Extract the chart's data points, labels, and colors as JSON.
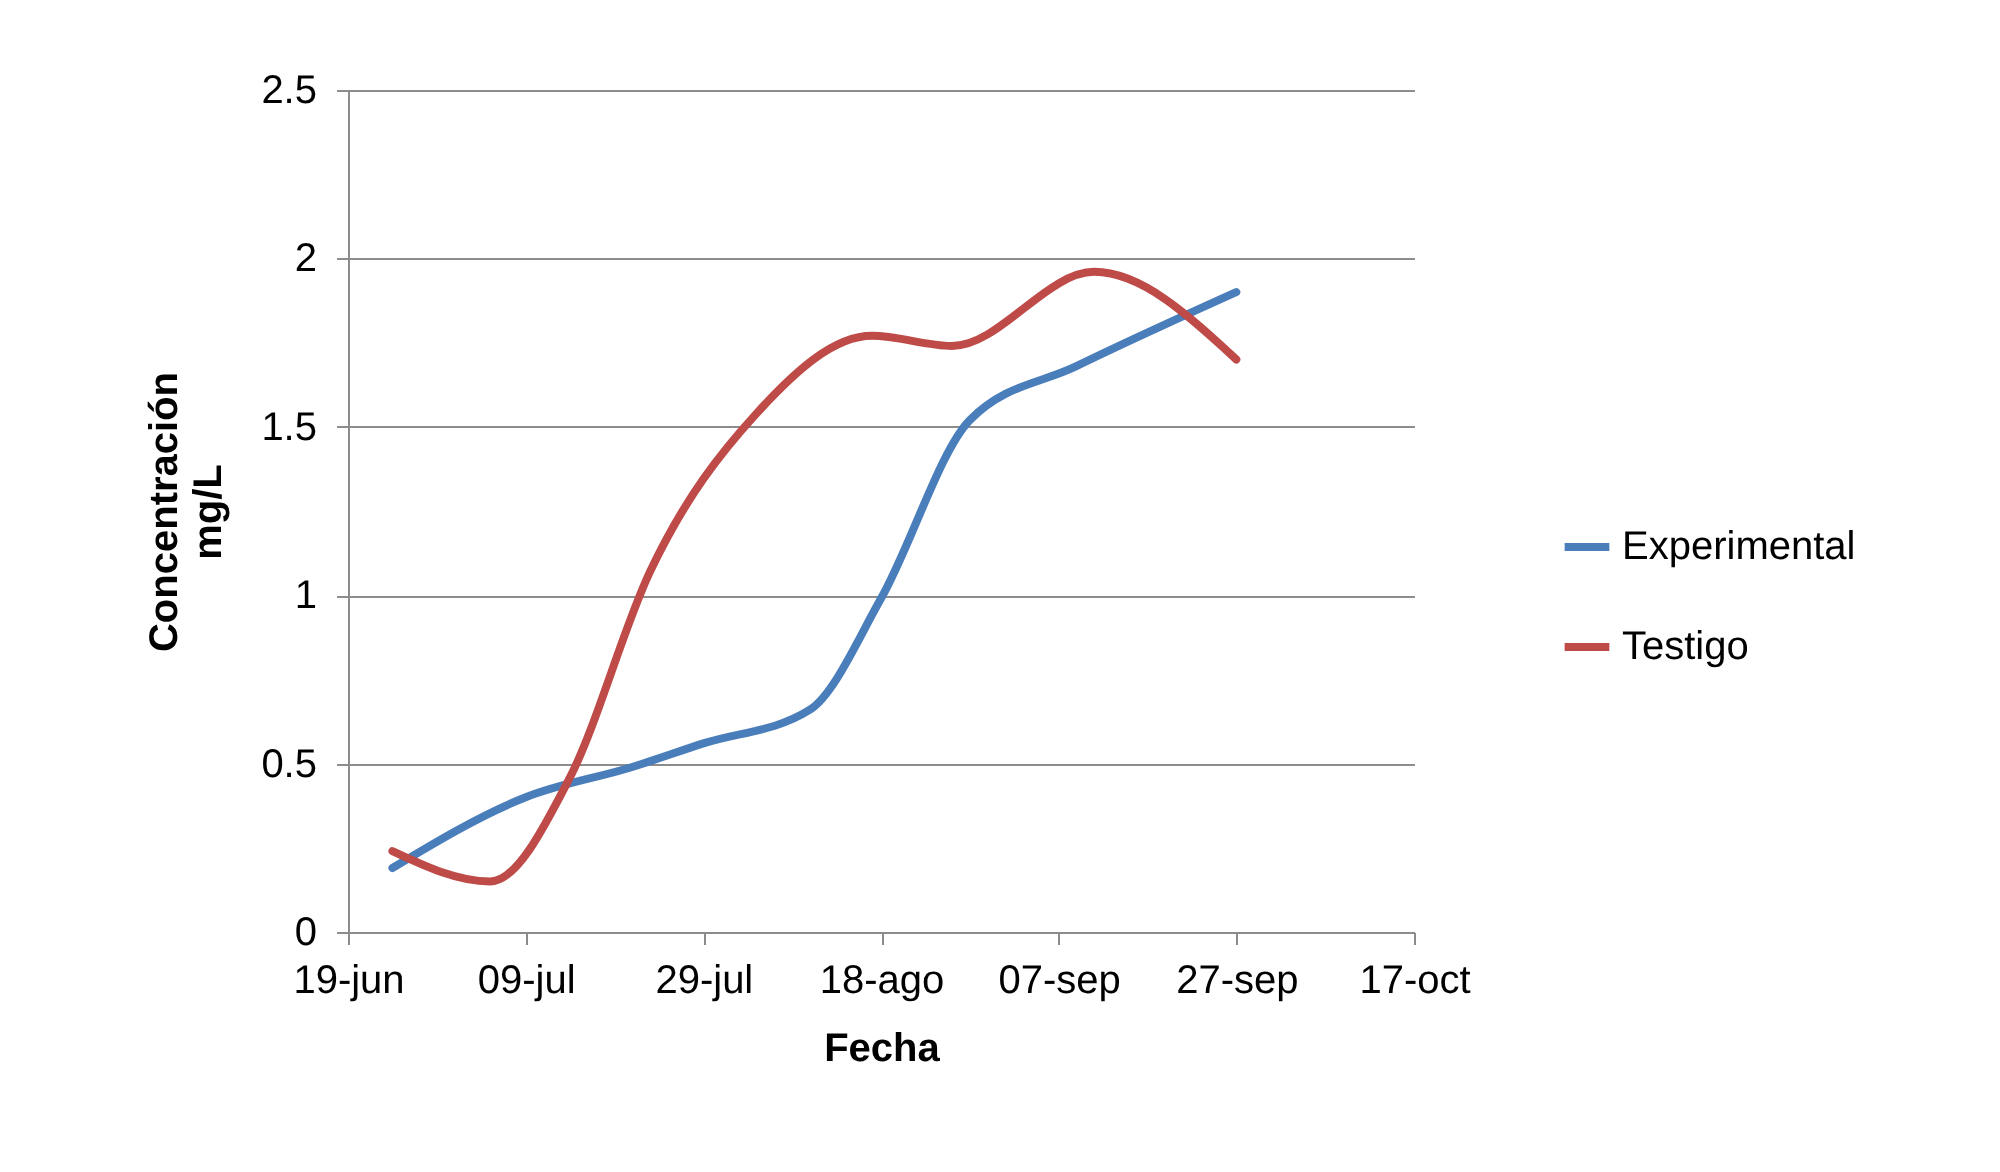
{
  "chart_data": {
    "type": "line",
    "xlabel": "Fecha",
    "ylabel": "Concentración mg/L",
    "xlim": [
      "--06-19",
      "--10-17"
    ],
    "xticks": [
      {
        "value": "--06-19",
        "label": "19-jun"
      },
      {
        "value": "--07-09",
        "label": "09-jul"
      },
      {
        "value": "--07-29",
        "label": "29-jul"
      },
      {
        "value": "--08-18",
        "label": "18-ago"
      },
      {
        "value": "--09-07",
        "label": "07-sep"
      },
      {
        "value": "--09-27",
        "label": "27-sep"
      },
      {
        "value": "--10-17",
        "label": "17-oct"
      }
    ],
    "ylim": [
      0,
      2.5
    ],
    "yticks": [
      0,
      0.5,
      1,
      1.5,
      2,
      2.5
    ],
    "grid": "y",
    "legend": "right",
    "line_style": "solid",
    "series": [
      {
        "name": "Experimental",
        "color": "#4a7ebb",
        "x": [
          "--06-24",
          "--07-09",
          "--07-21",
          "--07-29",
          "--08-10",
          "--08-18",
          "--08-28",
          "--09-09",
          "--09-27"
        ],
        "values": [
          0.19,
          0.4,
          0.49,
          0.56,
          0.66,
          0.99,
          1.52,
          1.68,
          1.9
        ]
      },
      {
        "name": "Testigo",
        "color": "#be4b48",
        "x": [
          "--06-24",
          "--07-05",
          "--07-14",
          "--07-23",
          "--08-04",
          "--08-17",
          "--08-26",
          "--09-11",
          "--09-27"
        ],
        "values": [
          0.24,
          0.15,
          0.46,
          1.07,
          1.54,
          1.77,
          1.74,
          1.96,
          1.7
        ]
      }
    ]
  }
}
